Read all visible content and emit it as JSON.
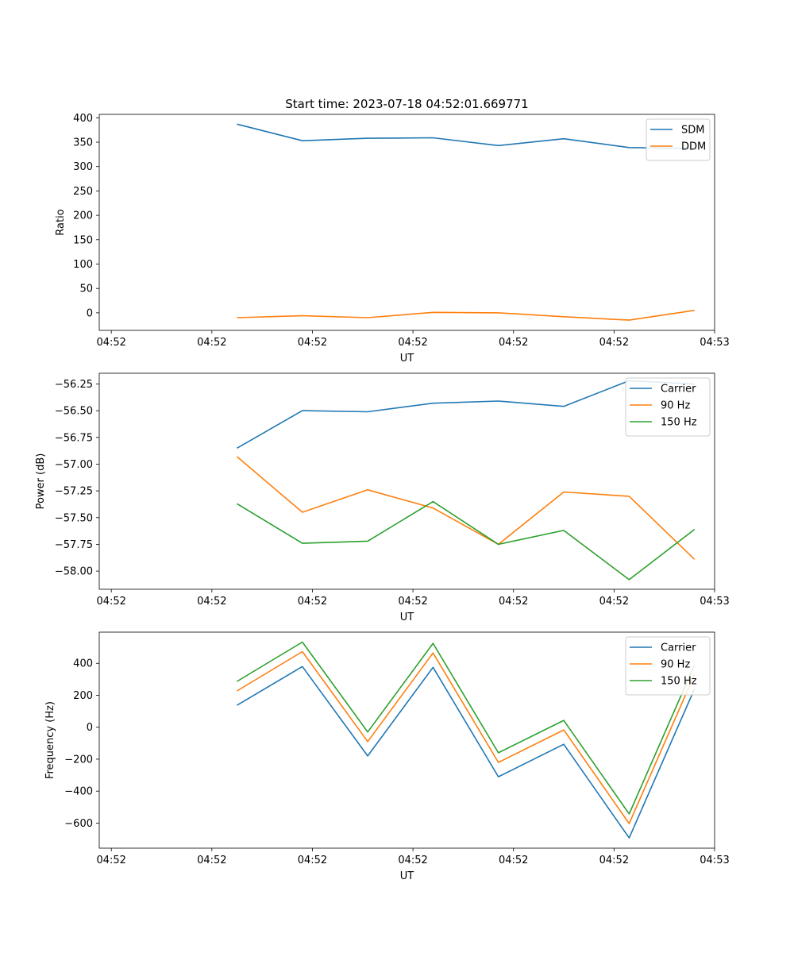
{
  "figure": {
    "title": "Start time: 2023-07-18 04:52:01.669771"
  },
  "chart_data": [
    {
      "type": "line",
      "title": "Start time: 2023-07-18 04:52:01.669771",
      "xlabel": "UT",
      "ylabel": "Ratio",
      "x": [
        1.37,
        2.02,
        2.67,
        3.32,
        3.97,
        4.62,
        5.27,
        5.92
      ],
      "xlim": [
        0,
        6.12
      ],
      "xticks": [
        0.12,
        1.12,
        2.12,
        3.12,
        4.12,
        5.12,
        6.12
      ],
      "xtick_labels": [
        "04:52",
        "04:52",
        "04:52",
        "04:52",
        "04:52",
        "04:52",
        "04:53"
      ],
      "ylim": [
        -36,
        407
      ],
      "yticks": [
        0,
        50,
        100,
        150,
        200,
        250,
        300,
        350,
        400
      ],
      "ytick_labels": [
        "0",
        "50",
        "100",
        "150",
        "200",
        "250",
        "300",
        "350",
        "400"
      ],
      "legend": "top-right",
      "series": [
        {
          "name": "SDM",
          "color": "#1f77b4",
          "values": [
            387,
            353,
            358,
            359,
            343,
            357,
            339,
            337
          ]
        },
        {
          "name": "DDM",
          "color": "#ff7f0e",
          "values": [
            -10,
            -6,
            -10,
            1,
            0,
            -8,
            -15,
            5
          ]
        }
      ]
    },
    {
      "type": "line",
      "xlabel": "UT",
      "ylabel": "Power (dB)",
      "x": [
        1.37,
        2.02,
        2.67,
        3.32,
        3.97,
        4.62,
        5.27,
        5.92
      ],
      "xlim": [
        0,
        6.12
      ],
      "xticks": [
        0.12,
        1.12,
        2.12,
        3.12,
        4.12,
        5.12,
        6.12
      ],
      "xtick_labels": [
        "04:52",
        "04:52",
        "04:52",
        "04:52",
        "04:52",
        "04:52",
        "04:53"
      ],
      "ylim": [
        -58.17,
        -56.15
      ],
      "yticks": [
        -58.0,
        -57.75,
        -57.5,
        -57.25,
        -57.0,
        -56.75,
        -56.5,
        -56.25
      ],
      "ytick_labels": [
        "−58.00",
        "−57.75",
        "−57.50",
        "−57.25",
        "−57.00",
        "−56.75",
        "−56.50",
        "−56.25"
      ],
      "legend": "top-right",
      "series": [
        {
          "name": "Carrier",
          "color": "#1f77b4",
          "values": [
            -56.85,
            -56.5,
            -56.51,
            -56.43,
            -56.41,
            -56.46,
            -56.22,
            -56.25
          ]
        },
        {
          "name": "90 Hz",
          "color": "#ff7f0e",
          "values": [
            -56.93,
            -57.45,
            -57.24,
            -57.41,
            -57.75,
            -57.26,
            -57.3,
            -57.89
          ]
        },
        {
          "name": "150 Hz",
          "color": "#2ca02c",
          "values": [
            -57.37,
            -57.74,
            -57.72,
            -57.35,
            -57.75,
            -57.62,
            -58.08,
            -57.61
          ]
        }
      ]
    },
    {
      "type": "line",
      "xlabel": "UT",
      "ylabel": "Frequency (Hz)",
      "x": [
        1.37,
        2.02,
        2.67,
        3.32,
        3.97,
        4.62,
        5.27,
        5.92
      ],
      "xlim": [
        0,
        6.12
      ],
      "xticks": [
        0.12,
        1.12,
        2.12,
        3.12,
        4.12,
        5.12,
        6.12
      ],
      "xtick_labels": [
        "04:52",
        "04:52",
        "04:52",
        "04:52",
        "04:52",
        "04:52",
        "04:53"
      ],
      "ylim": [
        -757,
        595
      ],
      "yticks": [
        -600,
        -400,
        -200,
        0,
        200,
        400
      ],
      "ytick_labels": [
        "−600",
        "−400",
        "−200",
        "0",
        "200",
        "400"
      ],
      "legend": "top-right",
      "series": [
        {
          "name": "Carrier",
          "color": "#1f77b4",
          "values": [
            137,
            380,
            -180,
            375,
            -310,
            -107,
            -693,
            240
          ]
        },
        {
          "name": "90 Hz",
          "color": "#ff7f0e",
          "values": [
            227,
            473,
            -90,
            465,
            -220,
            -17,
            -603,
            330
          ]
        },
        {
          "name": "150 Hz",
          "color": "#2ca02c",
          "values": [
            287,
            533,
            -30,
            525,
            -160,
            43,
            -543,
            390
          ]
        }
      ]
    }
  ]
}
